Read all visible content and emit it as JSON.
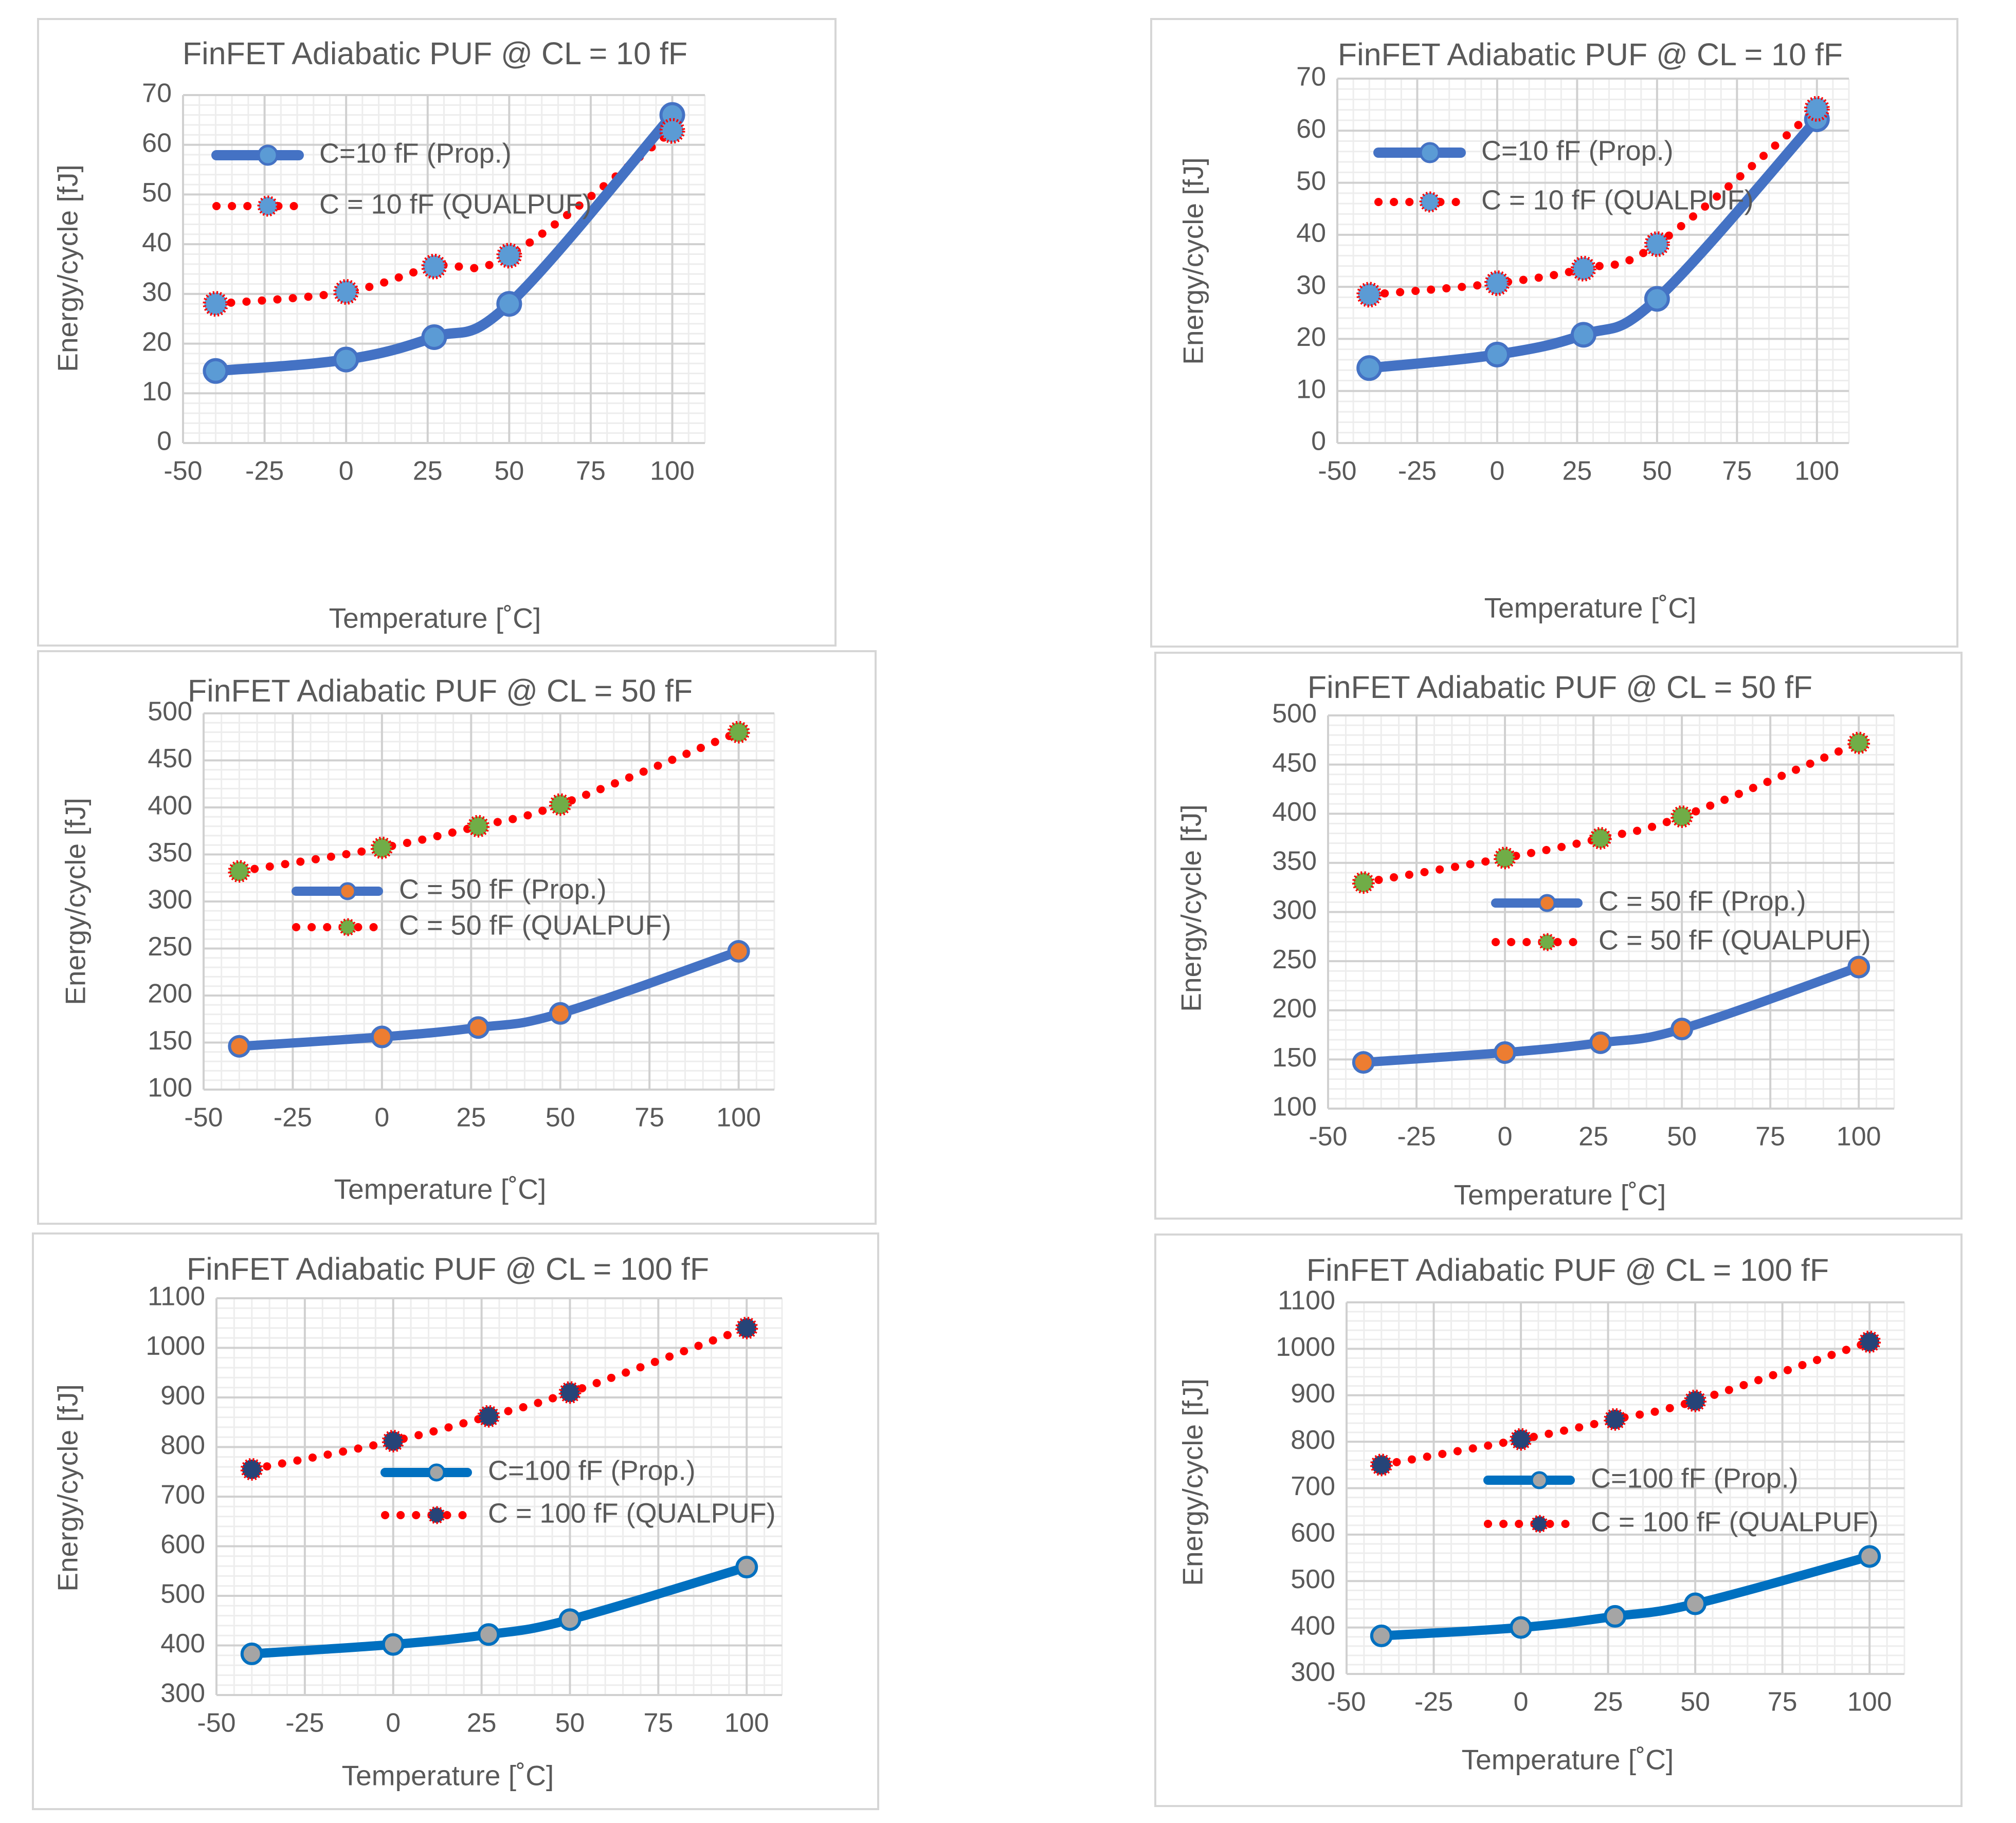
{
  "chart_data": [
    {
      "type": "line",
      "title": "FinFET Adiabatic PUF @ CL = 10 fF",
      "xlabel": "Temperature [˚C]",
      "ylabel": "Energy/cycle [fJ]",
      "xlim": [
        -50,
        110
      ],
      "ylim": [
        0,
        70
      ],
      "xticks": [
        "-50",
        "-25",
        "0",
        "25",
        "50",
        "75",
        "100"
      ],
      "yticks": [
        "0",
        "10",
        "20",
        "30",
        "40",
        "50",
        "60",
        "70"
      ],
      "grid": true,
      "legend": "upper-left",
      "x": [
        -40,
        0,
        27,
        50,
        100
      ],
      "series": [
        {
          "name": "C=10 fF (Prop.)",
          "values": [
            14.5,
            16.8,
            21.3,
            28.0,
            66.0
          ]
        },
        {
          "name": "C = 10 fF (QUALPUF)",
          "values": [
            28.0,
            30.4,
            35.5,
            37.7,
            62.8
          ]
        }
      ]
    },
    {
      "type": "line",
      "title": "FinFET Adiabatic PUF @ CL = 10 fF",
      "xlabel": "Temperature [˚C]",
      "ylabel": "Energy/cycle [fJ]",
      "xlim": [
        -50,
        110
      ],
      "ylim": [
        0,
        70
      ],
      "xticks": [
        "-50",
        "-25",
        "0",
        "25",
        "50",
        "75",
        "100"
      ],
      "yticks": [
        "0",
        "10",
        "20",
        "30",
        "40",
        "50",
        "60",
        "70"
      ],
      "grid": true,
      "legend": "upper-left",
      "x": [
        -40,
        0,
        27,
        50,
        100
      ],
      "series": [
        {
          "name": "C=10 fF (Prop.)",
          "values": [
            14.4,
            17.0,
            20.8,
            27.7,
            62.2
          ]
        },
        {
          "name": "C = 10 fF (QUALPUF)",
          "values": [
            28.5,
            30.7,
            33.5,
            38.2,
            64.2
          ]
        }
      ]
    },
    {
      "type": "line",
      "title": "FinFET Adiabatic PUF @ CL = 50 fF",
      "xlabel": "Temperature [˚C]",
      "ylabel": "Energy/cycle [fJ]",
      "xlim": [
        -50,
        110
      ],
      "ylim": [
        100,
        500
      ],
      "xticks": [
        "-50",
        "-25",
        "0",
        "25",
        "50",
        "75",
        "100"
      ],
      "yticks": [
        "100",
        "150",
        "200",
        "250",
        "300",
        "350",
        "400",
        "450",
        "500"
      ],
      "grid": true,
      "legend": "center",
      "x": [
        -40,
        0,
        27,
        50,
        100
      ],
      "series": [
        {
          "name": "C = 50 fF (Prop.)",
          "values": [
            146,
            156,
            166,
            181,
            247
          ]
        },
        {
          "name": "C = 50 fF (QUALPUF)",
          "values": [
            332,
            357,
            380,
            403,
            480
          ]
        }
      ]
    },
    {
      "type": "line",
      "title": "FinFET Adiabatic PUF @ CL = 50 fF",
      "xlabel": "Temperature [˚C]",
      "ylabel": "Energy/cycle [fJ]",
      "xlim": [
        -50,
        110
      ],
      "ylim": [
        100,
        500
      ],
      "xticks": [
        "-50",
        "-25",
        "0",
        "25",
        "50",
        "75",
        "100"
      ],
      "yticks": [
        "100",
        "150",
        "200",
        "250",
        "300",
        "350",
        "400",
        "450",
        "500"
      ],
      "grid": true,
      "legend": "center-right",
      "x": [
        -40,
        0,
        27,
        50,
        100
      ],
      "series": [
        {
          "name": "C = 50 fF (Prop.)",
          "values": [
            147,
            157,
            167,
            181,
            244
          ]
        },
        {
          "name": "C = 50 fF (QUALPUF)",
          "values": [
            330,
            355,
            375,
            397,
            472
          ]
        }
      ]
    },
    {
      "type": "line",
      "title": "FinFET Adiabatic PUF @ CL = 100 fF",
      "xlabel": "Temperature [˚C]",
      "ylabel": "Energy/cycle [fJ]",
      "xlim": [
        -50,
        110
      ],
      "ylim": [
        300,
        1100
      ],
      "xticks": [
        "-50",
        "-25",
        "0",
        "25",
        "50",
        "75",
        "100"
      ],
      "yticks": [
        "300",
        "400",
        "500",
        "600",
        "700",
        "800",
        "900",
        "1000",
        "1100"
      ],
      "grid": true,
      "legend": "center-right",
      "x": [
        -40,
        0,
        27,
        50,
        100
      ],
      "series": [
        {
          "name": "C=100 fF (Prop.)",
          "values": [
            383,
            402,
            422,
            452,
            558
          ]
        },
        {
          "name": "C = 100 fF (QUALPUF)",
          "values": [
            755,
            812,
            862,
            910,
            1040
          ]
        }
      ]
    },
    {
      "type": "line",
      "title": "FinFET Adiabatic PUF @ CL = 100 fF",
      "xlabel": "Temperature [˚C]",
      "ylabel": "Energy/cycle [fJ]",
      "xlim": [
        -50,
        110
      ],
      "ylim": [
        300,
        1100
      ],
      "xticks": [
        "-50",
        "-25",
        "0",
        "25",
        "50",
        "75",
        "100"
      ],
      "yticks": [
        "300",
        "400",
        "500",
        "600",
        "700",
        "800",
        "900",
        "1000",
        "1100"
      ],
      "grid": true,
      "legend": "center-right",
      "x": [
        -40,
        0,
        27,
        50,
        100
      ],
      "series": [
        {
          "name": "C=100 fF (Prop.)",
          "values": [
            382,
            400,
            424,
            451,
            553
          ]
        },
        {
          "name": "C = 100 fF (QUALPUF)",
          "values": [
            750,
            805,
            848,
            888,
            1015
          ]
        }
      ]
    }
  ],
  "colors": {
    "prop_line_10": "#4472c4",
    "prop_line_50": "#4472c4",
    "prop_line_100": "#0070c0",
    "qualpuf_line": "#ff0000",
    "marker_10": "#5b9bd5",
    "marker_50_prop": "#ed7d31",
    "marker_50_qual": "#70ad47",
    "marker_100_prop": "#a5a5a5",
    "marker_100_qual": "#264478"
  }
}
